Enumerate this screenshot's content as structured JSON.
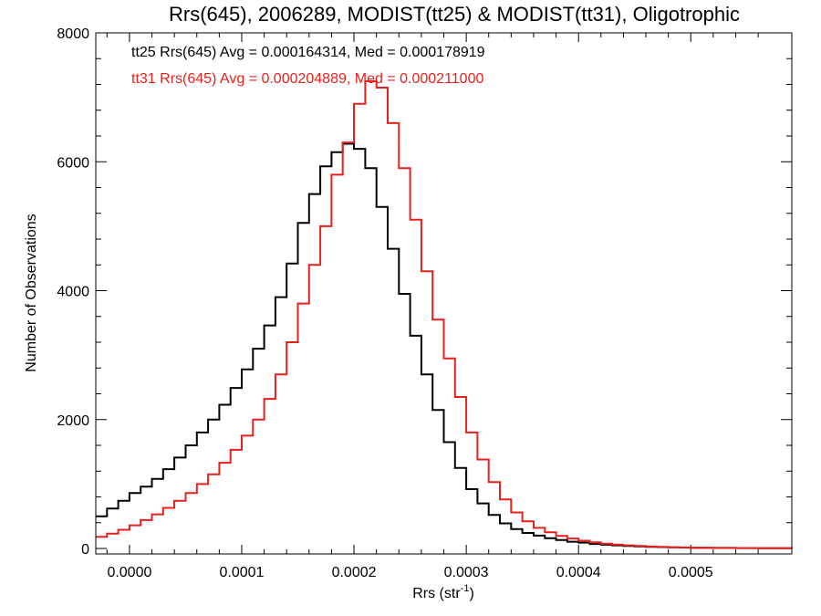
{
  "chart_data": {
    "type": "line",
    "title": "Rrs(645), 2006289, MODIST(tt25) & MODIST(tt31), Oligotrophic",
    "xlabel_main": "Rrs (str",
    "xlabel_sup": "-1",
    "xlabel_end": ")",
    "ylabel": "Number of Observations",
    "xlim": [
      -3e-05,
      0.00059
    ],
    "ylim": [
      0,
      8000
    ],
    "xticks": [
      0.0,
      0.0001,
      0.0002,
      0.0003,
      0.0004,
      0.0005
    ],
    "xtick_labels": [
      "0.0000",
      "0.0001",
      "0.0002",
      "0.0003",
      "0.0004",
      "0.0005"
    ],
    "yticks": [
      0,
      2000,
      4000,
      6000,
      8000
    ],
    "ytick_labels": [
      "0",
      "2000",
      "4000",
      "6000",
      "8000"
    ],
    "legend": [
      {
        "text": "tt25 Rrs(645) Avg = 0.000164314, Med = 0.000178919",
        "color": "#000000"
      },
      {
        "text": "tt31 Rrs(645) Avg = 0.000204889, Med = 0.000211000",
        "color": "#e8201c"
      }
    ],
    "series": [
      {
        "color": "#000000",
        "x": [
          -3e-05,
          -2e-05,
          -1e-05,
          0.0,
          1e-05,
          2e-05,
          3e-05,
          4e-05,
          5e-05,
          6e-05,
          7e-05,
          8e-05,
          9e-05,
          0.0001,
          0.00011,
          0.00012,
          0.00013,
          0.00014,
          0.00015,
          0.00016,
          0.00017,
          0.00018,
          0.00019,
          0.0002,
          0.00021,
          0.00022,
          0.00023,
          0.00024,
          0.00025,
          0.00026,
          0.00027,
          0.00028,
          0.00029,
          0.0003,
          0.00031,
          0.00032,
          0.00033,
          0.00034,
          0.00035,
          0.00036,
          0.00037,
          0.00038,
          0.00039,
          0.0004,
          0.00041,
          0.00042,
          0.00043,
          0.00044,
          0.00045,
          0.00046,
          0.00047,
          0.00048,
          0.00049,
          0.0005,
          0.00052,
          0.00054,
          0.00056,
          0.00059
        ],
        "y": [
          500,
          620,
          740,
          860,
          960,
          1080,
          1230,
          1410,
          1600,
          1800,
          2000,
          2230,
          2490,
          2780,
          3100,
          3460,
          3900,
          4420,
          5050,
          5500,
          5930,
          6150,
          6280,
          6200,
          5900,
          5300,
          4650,
          3950,
          3300,
          2700,
          2150,
          1650,
          1250,
          920,
          700,
          520,
          390,
          300,
          240,
          200,
          160,
          130,
          105,
          90,
          70,
          58,
          48,
          40,
          32,
          26,
          21,
          17,
          14,
          11,
          8,
          6,
          4,
          2
        ]
      },
      {
        "color": "#e8201c",
        "x": [
          -3e-05,
          -2e-05,
          -1e-05,
          0.0,
          1e-05,
          2e-05,
          3e-05,
          4e-05,
          5e-05,
          6e-05,
          7e-05,
          8e-05,
          9e-05,
          0.0001,
          0.00011,
          0.00012,
          0.00013,
          0.00014,
          0.00015,
          0.00016,
          0.00017,
          0.00018,
          0.00019,
          0.0002,
          0.00021,
          0.00022,
          0.00023,
          0.00024,
          0.00025,
          0.00026,
          0.00027,
          0.00028,
          0.00029,
          0.0003,
          0.00031,
          0.00032,
          0.00033,
          0.00034,
          0.00035,
          0.00036,
          0.00037,
          0.00038,
          0.00039,
          0.0004,
          0.00041,
          0.00042,
          0.00043,
          0.00044,
          0.00045,
          0.00046,
          0.00047,
          0.00048,
          0.00049,
          0.0005,
          0.00052,
          0.00054,
          0.00056,
          0.00059
        ],
        "y": [
          180,
          230,
          290,
          360,
          440,
          530,
          630,
          740,
          860,
          1000,
          1150,
          1330,
          1530,
          1750,
          2000,
          2320,
          2700,
          3200,
          3800,
          4400,
          5000,
          5800,
          6300,
          6900,
          7250,
          7150,
          6600,
          5900,
          5100,
          4300,
          3550,
          2950,
          2350,
          1800,
          1380,
          1030,
          760,
          560,
          420,
          320,
          250,
          195,
          155,
          120,
          95,
          75,
          60,
          48,
          38,
          30,
          24,
          19,
          15,
          12,
          9,
          7,
          5,
          3
        ]
      }
    ]
  }
}
